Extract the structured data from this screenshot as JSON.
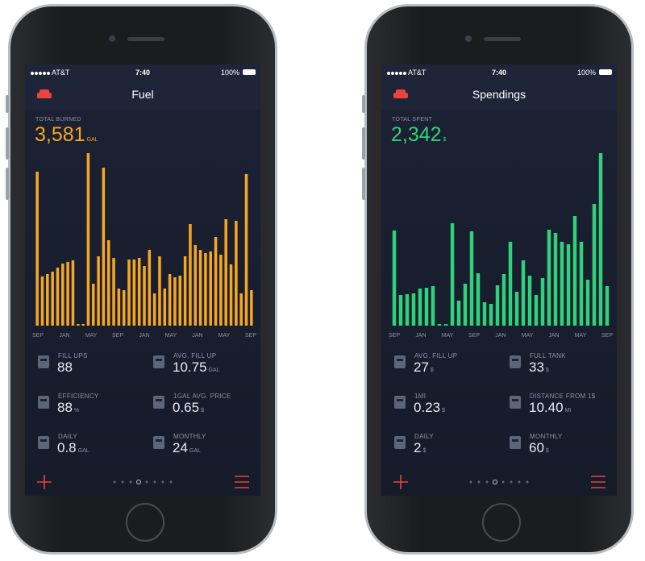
{
  "phones": [
    {
      "status": {
        "carrier": "AT&T",
        "time": "7:40",
        "battery": "100%"
      },
      "title": "Fuel",
      "total": {
        "label": "TOTAL BURNED",
        "value": "3,581",
        "unit": "GAL"
      },
      "chart": {
        "type": "bar",
        "color": "#f5a623",
        "values": [
          191,
          61,
          64,
          67,
          72,
          77,
          79,
          81,
          2,
          2,
          214,
          52,
          86,
          196,
          106,
          84,
          46,
          44,
          82,
          82,
          84,
          74,
          94,
          40,
          86,
          46,
          64,
          60,
          62,
          86,
          126,
          100,
          94,
          90,
          92,
          110,
          88,
          132,
          76,
          130,
          40,
          188,
          44
        ],
        "x_labels": [
          "SEP",
          "JAN",
          "MAY",
          "SEP",
          "JAN",
          "MAY",
          "JAN",
          "MAY",
          "SEP"
        ]
      },
      "stats": [
        {
          "label": "FILL UPS",
          "value": "88"
        },
        {
          "label": "AVG. FILL UP",
          "value": "10.75",
          "unit": "GAL"
        },
        {
          "label": "EFFICIENCY",
          "value": "88",
          "unit": "%"
        },
        {
          "label": "1GAL AVG. PRICE",
          "value": "0.65",
          "unit": "$"
        },
        {
          "label": "DAILY",
          "value": "0.8",
          "unit": "GAL"
        },
        {
          "label": "MONTHLY",
          "value": "24",
          "unit": "GAL"
        }
      ]
    },
    {
      "status": {
        "carrier": "AT&T",
        "time": "7:40",
        "battery": "100%"
      },
      "title": "Spendings",
      "total": {
        "label": "TOTAL SPENT",
        "value": "2,342",
        "unit": "$"
      },
      "chart": {
        "type": "bar",
        "color": "#2fd27a",
        "values": [
          118,
          38,
          39,
          40,
          46,
          47,
          49,
          2,
          2,
          127,
          31,
          52,
          117,
          65,
          29,
          27,
          50,
          64,
          104,
          42,
          81,
          62,
          38,
          59,
          119,
          115,
          104,
          101,
          136,
          104,
          57,
          151,
          214,
          49
        ],
        "x_labels": [
          "SEP",
          "JAN",
          "MAY",
          "SEP",
          "JAN",
          "MAY",
          "JAN",
          "MAY",
          "SEP"
        ]
      },
      "stats": [
        {
          "label": "AVG. FILL UP",
          "value": "27",
          "unit": "$"
        },
        {
          "label": "FULL TANK",
          "value": "33",
          "unit": "$"
        },
        {
          "label": "1MI",
          "value": "0.23",
          "unit": "$"
        },
        {
          "label": "DISTANCE FROM 1$",
          "value": "10.40",
          "unit": "MI"
        },
        {
          "label": "DAILY",
          "value": "2",
          "unit": "$"
        },
        {
          "label": "MONTHLY",
          "value": "60",
          "unit": "$"
        }
      ]
    }
  ]
}
